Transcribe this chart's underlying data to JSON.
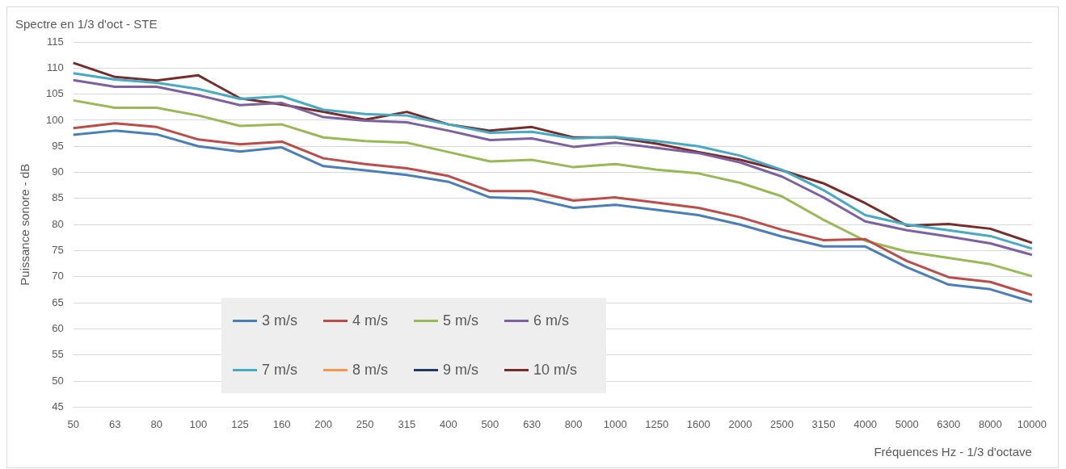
{
  "chart_data": {
    "type": "line",
    "title": "Spectre en 1/3 d'oct - STE",
    "xlabel": "Fréquences Hz - 1/3 d'octave",
    "ylabel": "Puissance sonore - dB",
    "categories": [
      "50",
      "63",
      "80",
      "100",
      "125",
      "160",
      "200",
      "250",
      "315",
      "400",
      "500",
      "630",
      "800",
      "1000",
      "1250",
      "1600",
      "2000",
      "2500",
      "3150",
      "4000",
      "5000",
      "6300",
      "8000",
      "10000"
    ],
    "series": [
      {
        "name": "3 m/s",
        "color": "#4a7ebb",
        "values": [
          97.2,
          98,
          97.3,
          95,
          94,
          94.8,
          91.2,
          90.4,
          89.5,
          88.2,
          85.2,
          85,
          83.2,
          83.8,
          82.8,
          81.8,
          80,
          77.7,
          75.8,
          75.8,
          71.8,
          68.5,
          67.6,
          65.2
        ]
      },
      {
        "name": "4 m/s",
        "color": "#be4b48",
        "values": [
          98.5,
          99.4,
          98.7,
          96.3,
          95.4,
          95.9,
          92.7,
          91.6,
          90.8,
          89.3,
          86.4,
          86.4,
          84.6,
          85.2,
          84.2,
          83.2,
          81.4,
          79,
          77,
          77.2,
          73,
          69.9,
          69,
          66.5
        ]
      },
      {
        "name": "5 m/s",
        "color": "#98b954",
        "values": [
          103.8,
          102.4,
          102.4,
          100.9,
          98.9,
          99.2,
          96.7,
          96,
          95.7,
          93.9,
          92.1,
          92.4,
          91,
          91.6,
          90.5,
          89.8,
          88,
          85.4,
          80.9,
          76.9,
          74.8,
          73.6,
          72.4,
          70.1
        ]
      },
      {
        "name": "6 m/s",
        "color": "#7d60a0",
        "values": [
          107.7,
          106.4,
          106.4,
          104.8,
          102.9,
          103.3,
          100.6,
          99.9,
          99.6,
          98,
          96.2,
          96.5,
          94.9,
          95.7,
          94.7,
          93.7,
          91.9,
          89.2,
          85.2,
          80.6,
          78.9,
          77.7,
          76.4,
          74.2
        ]
      },
      {
        "name": "7 m/s",
        "color": "#46aac5",
        "values": [
          109,
          107.8,
          107.2,
          106,
          104.1,
          104.6,
          102,
          101.2,
          100.9,
          99.2,
          97.6,
          97.8,
          96.5,
          96.8,
          96,
          95,
          93.2,
          90.5,
          86.6,
          81.8,
          80,
          78.9,
          77.8,
          75.4
        ]
      },
      {
        "name": "8 m/s",
        "color": "#f79646",
        "values": [
          null,
          null,
          null,
          null,
          null,
          null,
          null,
          null,
          null,
          null,
          null,
          null,
          null,
          null,
          null,
          null,
          null,
          null,
          null,
          null,
          null,
          null,
          null,
          null
        ]
      },
      {
        "name": "9 m/s",
        "color": "#1f3864",
        "values": [
          null,
          null,
          null,
          null,
          null,
          null,
          null,
          null,
          null,
          null,
          null,
          null,
          null,
          null,
          null,
          null,
          null,
          null,
          null,
          null,
          null,
          null,
          null,
          null
        ]
      },
      {
        "name": "10 m/s",
        "color": "#772c2a",
        "values": [
          111,
          108.3,
          107.6,
          108.6,
          104.2,
          103,
          101.6,
          100.1,
          101.6,
          99.2,
          98,
          98.7,
          96.7,
          96.7,
          95.5,
          93.9,
          92.4,
          90.4,
          87.9,
          84.1,
          79.8,
          80.1,
          79.2,
          76.5
        ]
      }
    ],
    "ylim": [
      45,
      115
    ],
    "yticks": [
      45,
      50,
      55,
      60,
      65,
      70,
      75,
      80,
      85,
      90,
      95,
      100,
      105,
      110,
      115
    ],
    "grid": "y",
    "legend": "bottom left",
    "marker": "none",
    "line_style": "solid"
  }
}
